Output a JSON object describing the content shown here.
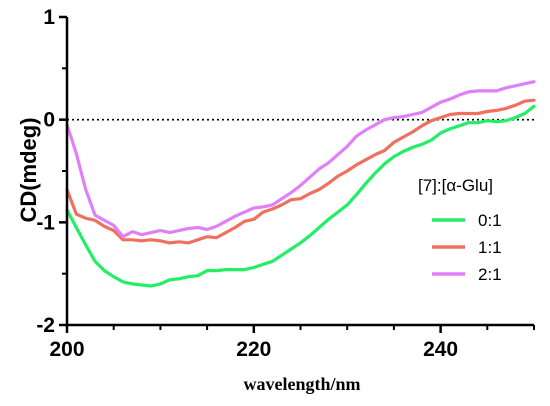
{
  "chart_data": {
    "type": "line",
    "title": "",
    "xlabel": "wavelength/nm",
    "ylabel": "CD(mdeg)",
    "xlim": [
      200,
      250
    ],
    "ylim": [
      -2,
      1
    ],
    "x_ticks": [
      200,
      220,
      240
    ],
    "x_tick_labels": [
      "200",
      "220",
      "240"
    ],
    "y_ticks": [
      -2,
      -1,
      0,
      1
    ],
    "y_tick_labels": [
      "-2",
      "-1",
      "0",
      "1"
    ],
    "reference_line": {
      "y": 0,
      "style": "dotted"
    },
    "grid": false,
    "legend": {
      "title": "[7]:[α-Glu]",
      "position": "right"
    },
    "x": [
      200,
      201,
      202,
      203,
      204,
      205,
      206,
      207,
      208,
      209,
      210,
      211,
      212,
      213,
      214,
      215,
      216,
      217,
      218,
      219,
      220,
      221,
      222,
      223,
      224,
      225,
      226,
      227,
      228,
      229,
      230,
      231,
      232,
      233,
      234,
      235,
      236,
      237,
      238,
      239,
      240,
      241,
      242,
      243,
      244,
      245,
      246,
      247,
      248,
      249,
      250
    ],
    "series": [
      {
        "name": "0:1",
        "color": "#22ee66",
        "values": [
          -0.88,
          -1.05,
          -1.22,
          -1.38,
          -1.47,
          -1.53,
          -1.58,
          -1.6,
          -1.61,
          -1.62,
          -1.6,
          -1.56,
          -1.55,
          -1.53,
          -1.52,
          -1.47,
          -1.47,
          -1.46,
          -1.46,
          -1.46,
          -1.44,
          -1.41,
          -1.38,
          -1.32,
          -1.26,
          -1.2,
          -1.13,
          -1.05,
          -0.97,
          -0.9,
          -0.83,
          -0.73,
          -0.62,
          -0.52,
          -0.43,
          -0.36,
          -0.31,
          -0.27,
          -0.24,
          -0.2,
          -0.13,
          -0.09,
          -0.06,
          -0.03,
          -0.03,
          -0.01,
          -0.02,
          -0.01,
          0.02,
          0.06,
          0.13
        ]
      },
      {
        "name": "1:1",
        "color": "#f07060",
        "values": [
          -0.68,
          -0.92,
          -0.96,
          -0.98,
          -1.04,
          -1.08,
          -1.17,
          -1.17,
          -1.18,
          -1.17,
          -1.18,
          -1.2,
          -1.19,
          -1.2,
          -1.17,
          -1.14,
          -1.15,
          -1.1,
          -1.05,
          -0.99,
          -0.97,
          -0.9,
          -0.87,
          -0.83,
          -0.78,
          -0.77,
          -0.72,
          -0.68,
          -0.62,
          -0.55,
          -0.5,
          -0.44,
          -0.39,
          -0.34,
          -0.3,
          -0.22,
          -0.17,
          -0.12,
          -0.06,
          -0.01,
          0.02,
          0.05,
          0.06,
          0.06,
          0.06,
          0.08,
          0.09,
          0.11,
          0.14,
          0.18,
          0.19
        ]
      },
      {
        "name": "2:1",
        "color": "#e080f8",
        "values": [
          -0.05,
          -0.33,
          -0.68,
          -0.93,
          -0.98,
          -1.03,
          -1.14,
          -1.09,
          -1.12,
          -1.1,
          -1.08,
          -1.1,
          -1.08,
          -1.06,
          -1.05,
          -1.07,
          -1.04,
          -0.99,
          -0.94,
          -0.9,
          -0.86,
          -0.85,
          -0.83,
          -0.77,
          -0.71,
          -0.64,
          -0.56,
          -0.48,
          -0.42,
          -0.34,
          -0.26,
          -0.16,
          -0.1,
          -0.05,
          0.0,
          0.02,
          0.03,
          0.05,
          0.07,
          0.12,
          0.17,
          0.2,
          0.24,
          0.27,
          0.28,
          0.28,
          0.28,
          0.31,
          0.33,
          0.35,
          0.37
        ]
      }
    ]
  }
}
